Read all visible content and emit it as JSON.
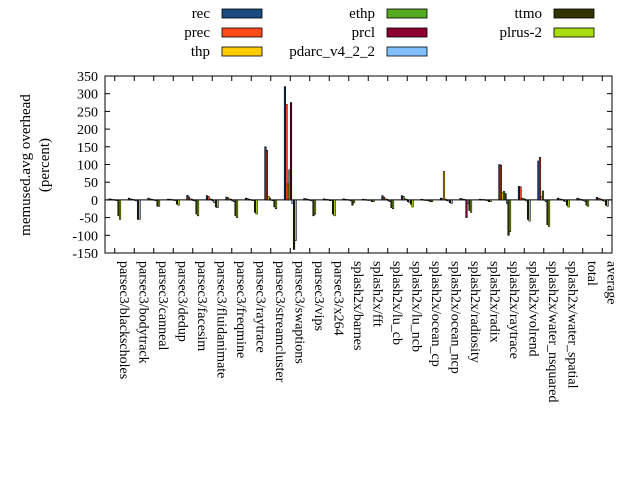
{
  "chart_data": {
    "type": "bar",
    "ylabel": "memused.avg overhead (percent)",
    "ylabel_lines": [
      "memused.avg overhead",
      "(percent)"
    ],
    "ylim": [
      -150,
      350
    ],
    "yticks": [
      -150,
      -100,
      -50,
      0,
      50,
      100,
      150,
      200,
      250,
      300,
      350
    ],
    "grid": false,
    "legend_position": "top",
    "categories": [
      "parsec3/blackscholes",
      "parsec3/bodytrack",
      "parsec3/canneal",
      "parsec3/dedup",
      "parsec3/facesim",
      "parsec3/fluidanimate",
      "parsec3/freqmine",
      "parsec3/raytrace",
      "parsec3/streamcluster",
      "parsec3/swaptions",
      "parsec3/vips",
      "parsec3/x264",
      "splash2x/barnes",
      "splash2x/fft",
      "splash2x/lu_cb",
      "splash2x/lu_ncb",
      "splash2x/ocean_cp",
      "splash2x/ocean_ncp",
      "splash2x/radiosity",
      "splash2x/radix",
      "splash2x/raytrace",
      "splash2x/volrend",
      "splash2x/water_nsquared",
      "splash2x/water_spatial",
      "total",
      "average"
    ],
    "series": [
      {
        "name": "rec",
        "color": "#1a4a80",
        "values": [
          3,
          5,
          5,
          2,
          13,
          12,
          8,
          5,
          150,
          320,
          4,
          3,
          3,
          2,
          12,
          12,
          2,
          5,
          4,
          2,
          100,
          38,
          110,
          5,
          5,
          7
        ]
      },
      {
        "name": "prec",
        "color": "#ff4a1a",
        "values": [
          2,
          3,
          3,
          2,
          8,
          10,
          6,
          4,
          140,
          270,
          3,
          2,
          2,
          1,
          8,
          10,
          1,
          4,
          3,
          1,
          98,
          37,
          120,
          3,
          3,
          5
        ]
      },
      {
        "name": "thp",
        "color": "#ffcc00",
        "values": [
          1,
          2,
          2,
          1,
          3,
          3,
          3,
          2,
          10,
          45,
          2,
          1,
          1,
          1,
          3,
          3,
          0,
          80,
          2,
          1,
          20,
          5,
          10,
          2,
          2,
          3
        ]
      },
      {
        "name": "ethp",
        "color": "#55aa22",
        "values": [
          1,
          1,
          1,
          1,
          2,
          2,
          2,
          1,
          5,
          85,
          1,
          1,
          1,
          0,
          2,
          2,
          0,
          2,
          1,
          1,
          24,
          4,
          25,
          1,
          1,
          2
        ]
      },
      {
        "name": "prcl",
        "color": "#8b0030",
        "values": [
          0,
          -1,
          -1,
          -1,
          -2,
          -3,
          -3,
          -1,
          -1,
          275,
          -2,
          -2,
          -1,
          0,
          -3,
          -5,
          -2,
          -2,
          -50,
          -1,
          18,
          2,
          0,
          -3,
          -2,
          -2
        ]
      },
      {
        "name": "pdarc_v4_2_2",
        "color": "#80c0ff",
        "values": [
          -2,
          -3,
          -2,
          -2,
          -3,
          -8,
          -5,
          -2,
          -2,
          -10,
          -3,
          -2,
          -3,
          -1,
          -5,
          -7,
          -3,
          -3,
          -10,
          -2,
          -10,
          -3,
          -5,
          -5,
          -4,
          -4
        ]
      },
      {
        "name": "ttmo",
        "color": "#333300",
        "values": [
          -45,
          -55,
          -18,
          -12,
          -40,
          -20,
          -45,
          -35,
          -20,
          -140,
          -45,
          -40,
          -15,
          -5,
          -22,
          -12,
          -5,
          -8,
          -30,
          -5,
          -100,
          -55,
          -70,
          -15,
          -15,
          -15
        ]
      },
      {
        "name": "plrus-2",
        "color": "#aadd11",
        "values": [
          -55,
          -55,
          -18,
          -15,
          -45,
          -22,
          -50,
          -40,
          -25,
          -115,
          -40,
          -45,
          -8,
          -5,
          -25,
          -20,
          -5,
          -10,
          -35,
          -5,
          -90,
          -60,
          -75,
          -20,
          -18,
          -18
        ]
      }
    ]
  }
}
